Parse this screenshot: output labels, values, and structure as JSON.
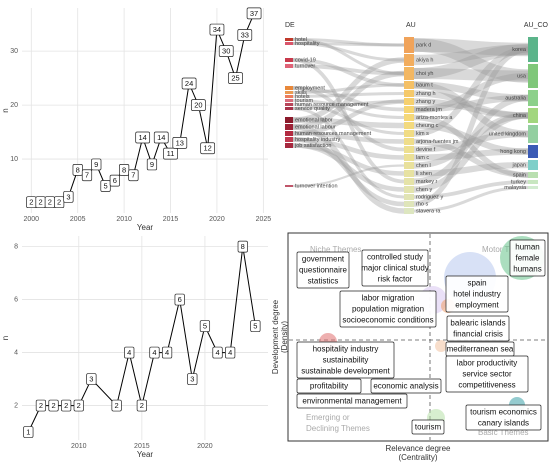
{
  "chart_data": [
    {
      "type": "line",
      "x": [
        2000,
        2001,
        2002,
        2003,
        2004,
        2005,
        2006,
        2007,
        2008,
        2009,
        2010,
        2011,
        2012,
        2013,
        2014,
        2015,
        2016,
        2017,
        2018,
        2019,
        2020,
        2021,
        2022,
        2023,
        2024
      ],
      "values": [
        2,
        2,
        2,
        2,
        3,
        8,
        7,
        9,
        5,
        6,
        8,
        7,
        14,
        9,
        14,
        11,
        13,
        24,
        20,
        12,
        34,
        30,
        25,
        33,
        37
      ],
      "xlabel": "Year",
      "ylabel": "n",
      "xlim": [
        1999,
        2025.5
      ],
      "ylim": [
        0,
        38
      ],
      "xticks": [
        2000,
        2005,
        2010,
        2015,
        2020,
        2025
      ],
      "yticks": [
        10,
        20,
        30
      ],
      "color": "#000000",
      "grid": true
    },
    {
      "type": "line",
      "x": [
        2006,
        2007,
        2008,
        2009,
        2010,
        2011,
        2013,
        2014,
        2015,
        2016,
        2017,
        2018,
        2019,
        2020,
        2021,
        2022,
        2023,
        2024
      ],
      "values": [
        1,
        2,
        2,
        2,
        2,
        3,
        2,
        4,
        2,
        4,
        4,
        6,
        3,
        5,
        4,
        4,
        8,
        5
      ],
      "xlabel": "Year",
      "ylabel": "n",
      "xlim": [
        2005.5,
        2025
      ],
      "ylim": [
        0.7,
        8.4
      ],
      "xticks": [
        2010,
        2015,
        2020
      ],
      "yticks": [
        2,
        4,
        6,
        8
      ],
      "color": "#000000",
      "grid": true
    }
  ],
  "sankey": {
    "columns": [
      "DE",
      "AU",
      "AU_CO"
    ],
    "nodes": [
      [
        "hotel",
        "hospitality",
        "covid-19",
        "turnover",
        "employment",
        "skills",
        "hotels",
        "tourism",
        "human resource management",
        "service quality",
        "emotional labor",
        "emotional labour",
        "human resources management",
        "hospitality industry",
        "job satisfaction",
        "turnover intention"
      ],
      [
        "park d",
        "akiya h",
        "choi yh",
        "baum t",
        "zhang h",
        "zhang y",
        "madera jm",
        "ariza-montes a",
        "cheung c",
        "kim s",
        "arjona-fuentes jm",
        "devine f",
        "lam c",
        "chen l",
        "li shen",
        "markey r",
        "chen y",
        "rodriguez y",
        "rho s",
        "stavera ra"
      ],
      [
        "korea",
        "usa",
        "australia",
        "china",
        "united kingdom",
        "hong kong",
        "japan",
        "spain",
        "turkey",
        "malaysia"
      ]
    ],
    "colors": [
      [
        "#c0392b",
        "#d9546a",
        "#c83a4c",
        "#e06377",
        "#e8883a",
        "#ea9a52",
        "#ec7c5a",
        "#d96b7b",
        "#b8455a",
        "#a8324a",
        "#8b1a2b",
        "#9d2236",
        "#b22a40",
        "#c0394f",
        "#a6283e",
        "#c0566a"
      ],
      [
        "#f0a35a",
        "#f2ad5e",
        "#f3b762",
        "#f4c066",
        "#f5c96a",
        "#f6d06e",
        "#f6d572",
        "#f5d878",
        "#f3da7e",
        "#f1dc84",
        "#efdd8a",
        "#eddf90",
        "#ebe096",
        "#e9e19c",
        "#e7e2a2",
        "#e5e3a8",
        "#e3e4ae",
        "#e1e4b4",
        "#dfe5ba",
        "#dde6c0"
      ],
      [
        "#5bb48a",
        "#7fc77a",
        "#8cd08a",
        "#a2d67e",
        "#93cfa0",
        "#3b5bb5",
        "#7ecfc9",
        "#b9dfb0",
        "#c8e6c0",
        "#d2ebd0"
      ]
    ]
  },
  "thematic_map": {
    "xlabel": [
      "Relevance degree",
      "(Centrality)"
    ],
    "ylabel": [
      "Development degree",
      "(Density)"
    ],
    "quadrants": [
      "Niche Themes",
      "Motor Themes",
      "Emerging or",
      "Declining Themes",
      "Basic Themes"
    ],
    "clusters": [
      {
        "labels": [
          "government",
          "questionnaire",
          "statistics"
        ]
      },
      {
        "labels": [
          "controlled study",
          "major clinical study",
          "risk factor"
        ]
      },
      {
        "labels": [
          "human",
          "female",
          "humans"
        ],
        "color": "#66c28a"
      },
      {
        "labels": [
          "labor migration",
          "population migration",
          "socioeconomic conditions"
        ],
        "color": "#d9c6f0"
      },
      {
        "labels": [
          "spain",
          "hotel industry",
          "employment"
        ],
        "color": "#b8c8ee"
      },
      {
        "labels": [
          "balearic islands",
          "financial crisis"
        ],
        "color": "#ef9f6a"
      },
      {
        "labels": [
          "mediterranean sea"
        ]
      },
      {
        "labels": [
          "hospitality industry",
          "sustainability",
          "sustainable development"
        ],
        "color": "#e07070"
      },
      {
        "labels": [
          "economic analysis"
        ]
      },
      {
        "labels": [
          "profitability"
        ]
      },
      {
        "labels": [
          "environmental management"
        ]
      },
      {
        "labels": [
          "labor productivity",
          "service sector",
          "competitiveness"
        ],
        "color": "#f3c3a0"
      },
      {
        "labels": [
          "tourism"
        ],
        "color": "#b7e0a8"
      },
      {
        "labels": [
          "tourism economics",
          "canary islands"
        ],
        "color": "#3aa0a8"
      }
    ]
  }
}
